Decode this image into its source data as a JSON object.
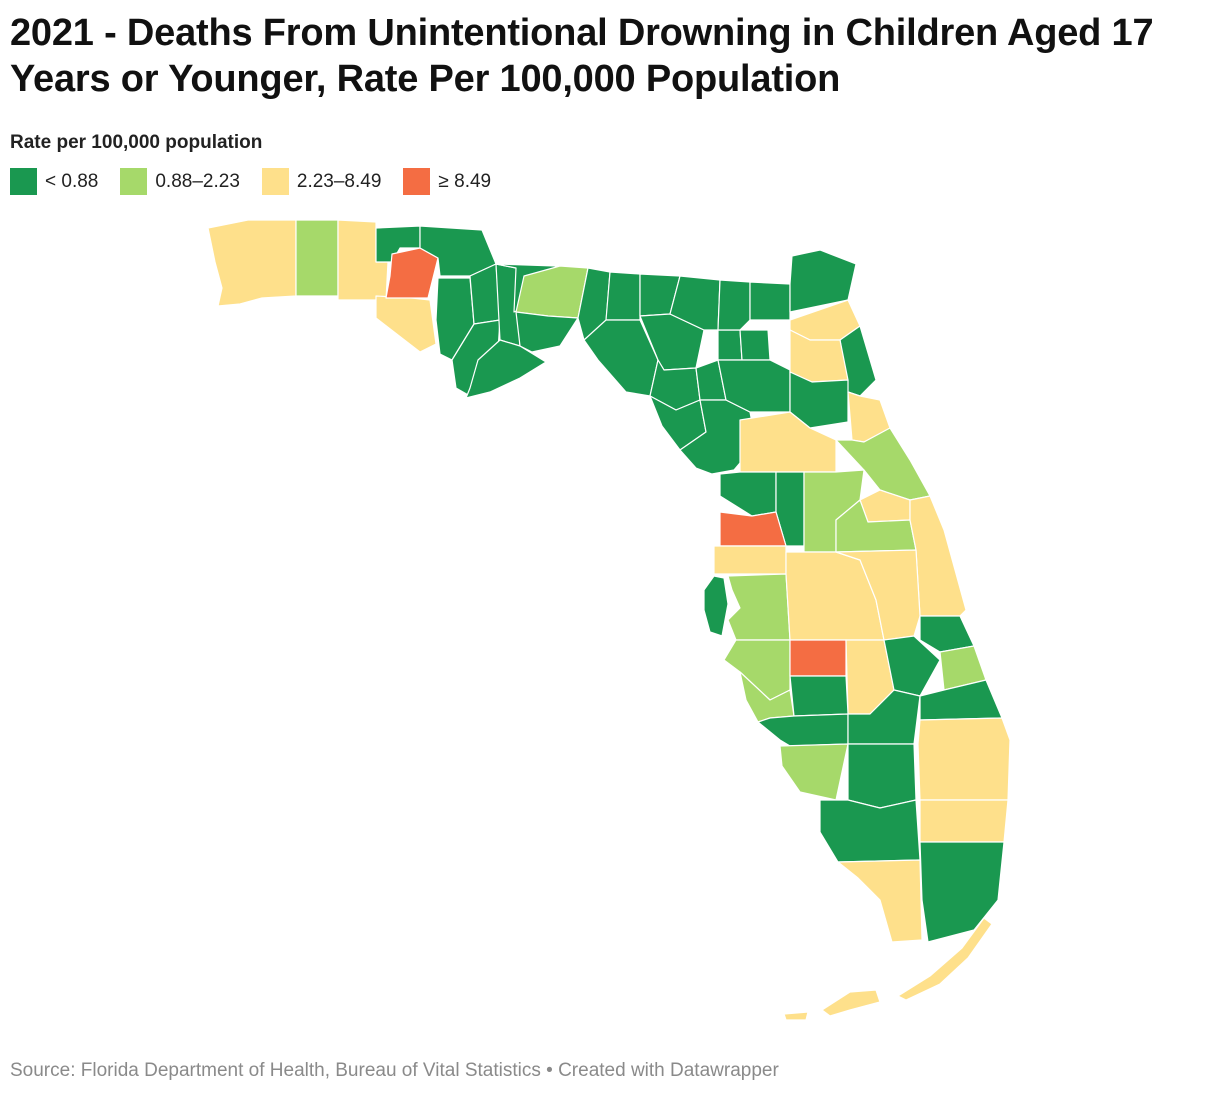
{
  "title": "2021 - Deaths From Unintentional Drowning in Children Aged 17 Years or Younger, Rate Per 100,000 Population",
  "legend": {
    "title": "Rate per 100,000 population",
    "items": [
      {
        "label": "< 0.88",
        "color": "#1a9850"
      },
      {
        "label": "0.88–2.23",
        "color": "#a6d96a"
      },
      {
        "label": "2.23–8.49",
        "color": "#fee08b"
      },
      {
        "label": "≥ 8.49",
        "color": "#f46d43"
      }
    ]
  },
  "footer": {
    "source": "Source: Florida Department of Health, Bureau of Vital Statistics",
    "separator": " • ",
    "credit": "Created with Datawrapper"
  }
}
